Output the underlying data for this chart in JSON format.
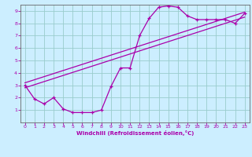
{
  "xlabel": "Windchill (Refroidissement éolien,°C)",
  "bg_color": "#cceeff",
  "line_color": "#aa00aa",
  "grid_color": "#99cccc",
  "axis_color": "#666666",
  "text_color": "#aa00aa",
  "xlim": [
    -0.5,
    23.5
  ],
  "ylim": [
    0,
    9.5
  ],
  "xticks": [
    0,
    1,
    2,
    3,
    4,
    5,
    6,
    7,
    8,
    9,
    10,
    11,
    12,
    13,
    14,
    15,
    16,
    17,
    18,
    19,
    20,
    21,
    22,
    23
  ],
  "yticks": [
    1,
    2,
    3,
    4,
    5,
    6,
    7,
    8,
    9
  ],
  "curve1_x": [
    0,
    1,
    2,
    3,
    4,
    5,
    6,
    7,
    8,
    9,
    10,
    11,
    12,
    13,
    14,
    15,
    16,
    17,
    18,
    19,
    20,
    21,
    22,
    23
  ],
  "curve1_y": [
    3.0,
    1.9,
    1.5,
    2.0,
    1.1,
    0.8,
    0.8,
    0.8,
    1.0,
    2.9,
    4.4,
    4.4,
    7.0,
    8.4,
    9.3,
    9.4,
    9.3,
    8.6,
    8.3,
    8.3,
    8.3,
    8.3,
    8.0,
    8.8
  ],
  "trend1_x": [
    0,
    23
  ],
  "trend1_y": [
    2.8,
    8.5
  ],
  "trend2_x": [
    0,
    23
  ],
  "trend2_y": [
    3.2,
    8.9
  ]
}
